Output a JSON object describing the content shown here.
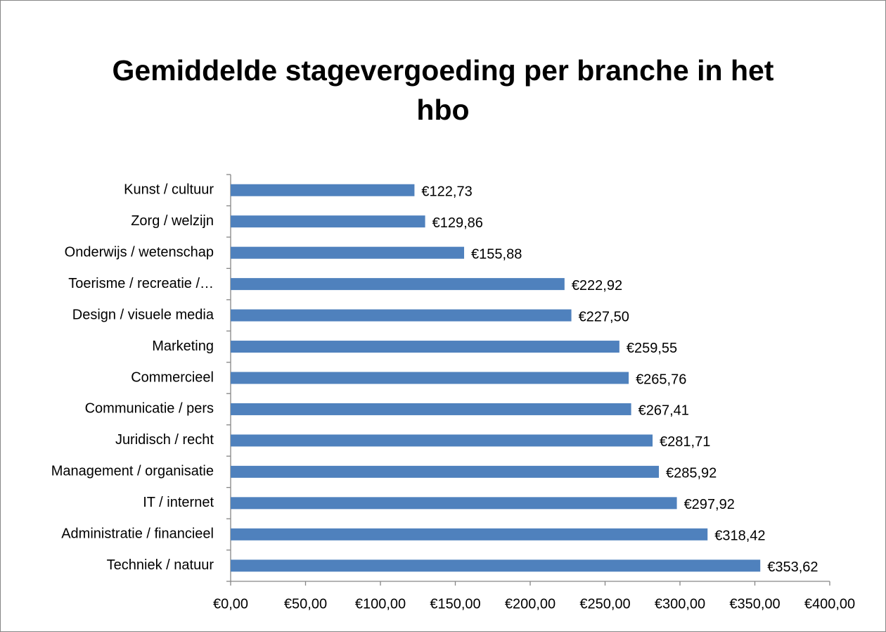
{
  "chart_data": {
    "type": "bar",
    "orientation": "horizontal",
    "title": "Gemiddelde stagevergoeding per branche in het hbo",
    "categories": [
      "Kunst / cultuur",
      "Zorg / welzijn",
      "Onderwijs / wetenschap",
      "Toerisme / recreatie /…",
      "Design / visuele media",
      "Marketing",
      "Commercieel",
      "Communicatie / pers",
      "Juridisch / recht",
      "Management / organisatie",
      "IT / internet",
      "Administratie / financieel",
      "Techniek / natuur"
    ],
    "values": [
      122.73,
      129.86,
      155.88,
      222.92,
      227.5,
      259.55,
      265.76,
      267.41,
      281.71,
      285.92,
      297.92,
      318.42,
      353.62
    ],
    "value_labels": [
      "€122,73",
      "€129,86",
      "€155,88",
      "€222,92",
      "€227,50",
      "€259,55",
      "€265,76",
      "€267,41",
      "€281,71",
      "€285,92",
      "€297,92",
      "€318,42",
      "€353,62"
    ],
    "color": "#4f81bd",
    "xlim": [
      0,
      400
    ],
    "xticks": [
      {
        "value": 0,
        "label": "€0,00"
      },
      {
        "value": 50,
        "label": "€50,00"
      },
      {
        "value": 100,
        "label": "€100,00"
      },
      {
        "value": 150,
        "label": "€150,00"
      },
      {
        "value": 200,
        "label": "€200,00"
      },
      {
        "value": 250,
        "label": "€250,00"
      },
      {
        "value": 300,
        "label": "€300,00"
      },
      {
        "value": 350,
        "label": "€350,00"
      },
      {
        "value": 400,
        "label": "€400,00"
      }
    ]
  }
}
